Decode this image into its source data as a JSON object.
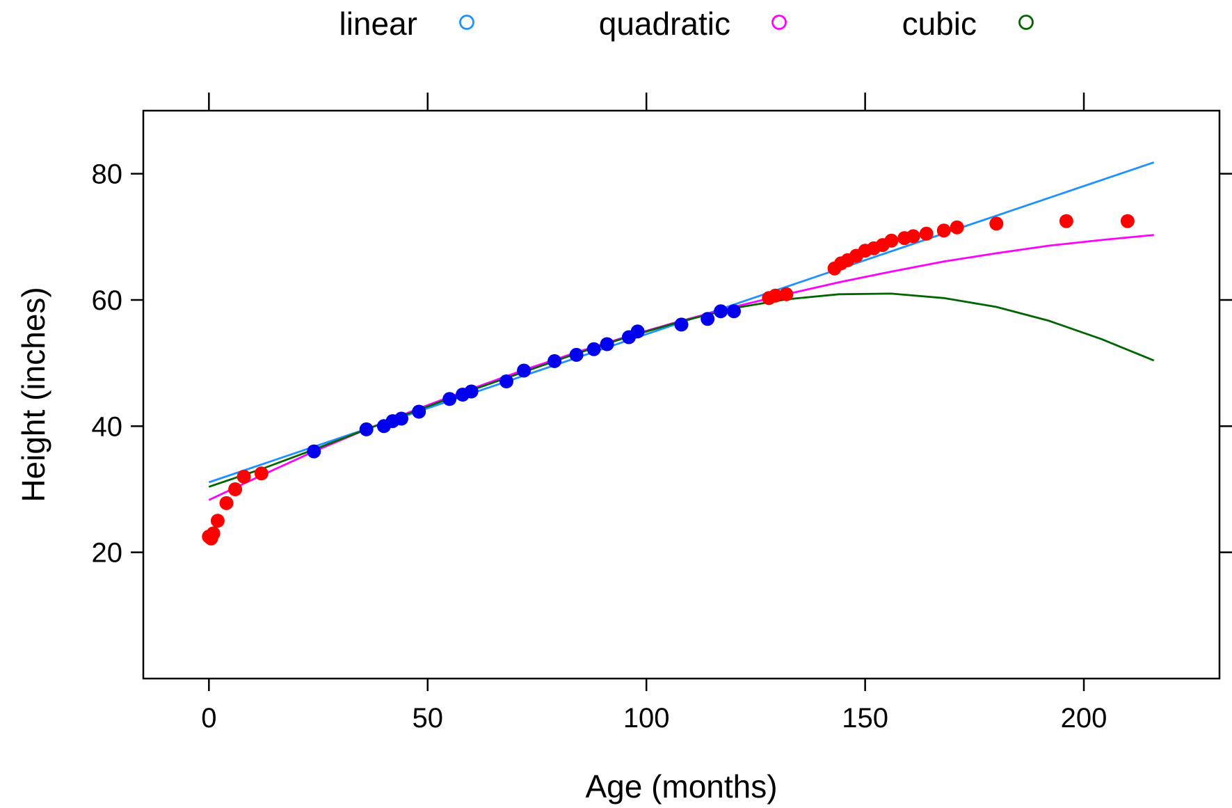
{
  "chart_data": {
    "type": "scatter",
    "title": "",
    "xlabel": "Age (months)",
    "ylabel": "Height (inches)",
    "xlim": [
      -15,
      231
    ],
    "ylim": [
      0,
      90
    ],
    "xticks": [
      0,
      50,
      100,
      150,
      200
    ],
    "yticks": [
      20,
      40,
      60,
      80
    ],
    "grid": false,
    "legend": {
      "position": "top",
      "entries": [
        {
          "label": "linear",
          "color": "#1E90FF"
        },
        {
          "label": "quadratic",
          "color": "#FF00FF"
        },
        {
          "label": "cubic",
          "color": "#006400"
        }
      ]
    },
    "point_colors": {
      "fit_range": "#0000EE",
      "outside": "#FF0000"
    },
    "points": [
      {
        "x": 0,
        "y": 22.5,
        "group": "outside"
      },
      {
        "x": 0.5,
        "y": 22.2,
        "group": "outside"
      },
      {
        "x": 1,
        "y": 23,
        "group": "outside"
      },
      {
        "x": 2,
        "y": 25,
        "group": "outside"
      },
      {
        "x": 4,
        "y": 27.8,
        "group": "outside"
      },
      {
        "x": 6,
        "y": 30,
        "group": "outside"
      },
      {
        "x": 8,
        "y": 32,
        "group": "outside"
      },
      {
        "x": 12,
        "y": 32.5,
        "group": "outside"
      },
      {
        "x": 24,
        "y": 36,
        "group": "fit_range"
      },
      {
        "x": 36,
        "y": 39.5,
        "group": "fit_range"
      },
      {
        "x": 40,
        "y": 40,
        "group": "fit_range"
      },
      {
        "x": 42,
        "y": 40.8,
        "group": "fit_range"
      },
      {
        "x": 44,
        "y": 41.2,
        "group": "fit_range"
      },
      {
        "x": 48,
        "y": 42.3,
        "group": "fit_range"
      },
      {
        "x": 55,
        "y": 44.3,
        "group": "fit_range"
      },
      {
        "x": 58,
        "y": 45,
        "group": "fit_range"
      },
      {
        "x": 60,
        "y": 45.5,
        "group": "fit_range"
      },
      {
        "x": 68,
        "y": 47.1,
        "group": "fit_range"
      },
      {
        "x": 72,
        "y": 48.8,
        "group": "fit_range"
      },
      {
        "x": 79,
        "y": 50.3,
        "group": "fit_range"
      },
      {
        "x": 84,
        "y": 51.3,
        "group": "fit_range"
      },
      {
        "x": 88,
        "y": 52.2,
        "group": "fit_range"
      },
      {
        "x": 91,
        "y": 53,
        "group": "fit_range"
      },
      {
        "x": 96,
        "y": 54.1,
        "group": "fit_range"
      },
      {
        "x": 98,
        "y": 55,
        "group": "fit_range"
      },
      {
        "x": 108,
        "y": 56.1,
        "group": "fit_range"
      },
      {
        "x": 114,
        "y": 57,
        "group": "fit_range"
      },
      {
        "x": 117,
        "y": 58.2,
        "group": "fit_range"
      },
      {
        "x": 120,
        "y": 58.2,
        "group": "fit_range"
      },
      {
        "x": 128,
        "y": 60.3,
        "group": "outside"
      },
      {
        "x": 129.5,
        "y": 60.7,
        "group": "outside"
      },
      {
        "x": 132,
        "y": 60.9,
        "group": "outside"
      },
      {
        "x": 143,
        "y": 65,
        "group": "outside"
      },
      {
        "x": 144.5,
        "y": 65.8,
        "group": "outside"
      },
      {
        "x": 146,
        "y": 66.3,
        "group": "outside"
      },
      {
        "x": 148,
        "y": 67,
        "group": "outside"
      },
      {
        "x": 150,
        "y": 67.8,
        "group": "outside"
      },
      {
        "x": 152,
        "y": 68.2,
        "group": "outside"
      },
      {
        "x": 154,
        "y": 68.7,
        "group": "outside"
      },
      {
        "x": 156,
        "y": 69.4,
        "group": "outside"
      },
      {
        "x": 159,
        "y": 69.8,
        "group": "outside"
      },
      {
        "x": 161,
        "y": 70.1,
        "group": "outside"
      },
      {
        "x": 164,
        "y": 70.5,
        "group": "outside"
      },
      {
        "x": 168,
        "y": 71,
        "group": "outside"
      },
      {
        "x": 171,
        "y": 71.5,
        "group": "outside"
      },
      {
        "x": 180,
        "y": 72.1,
        "group": "outside"
      },
      {
        "x": 196,
        "y": 72.5,
        "group": "outside"
      },
      {
        "x": 210,
        "y": 72.5,
        "group": "outside"
      }
    ],
    "series": [
      {
        "name": "linear",
        "color": "#1E90FF",
        "x": [
          0,
          216
        ],
        "y": [
          31.1,
          81.8
        ]
      },
      {
        "name": "quadratic",
        "color": "#FF00FF",
        "x": [
          0,
          12,
          24,
          36,
          48,
          60,
          72,
          84,
          96,
          108,
          120,
          132,
          144,
          156,
          168,
          180,
          192,
          204,
          216
        ],
        "y": [
          28.3,
          32.2,
          36,
          39.5,
          42.8,
          45.9,
          48.9,
          51.7,
          54.3,
          56.7,
          58.9,
          60.9,
          62.8,
          64.5,
          66.1,
          67.4,
          68.6,
          69.5,
          70.3
        ]
      },
      {
        "name": "cubic",
        "color": "#006400",
        "x": [
          0,
          12,
          24,
          36,
          48,
          60,
          72,
          84,
          96,
          108,
          120,
          132,
          144,
          156,
          168,
          180,
          192,
          204,
          216
        ],
        "y": [
          30.4,
          33.2,
          36.3,
          39.5,
          42.6,
          45.7,
          48.6,
          51.5,
          54.2,
          56.6,
          58.7,
          60.1,
          60.9,
          61,
          60.3,
          58.9,
          56.7,
          53.8,
          50.4
        ]
      }
    ]
  }
}
